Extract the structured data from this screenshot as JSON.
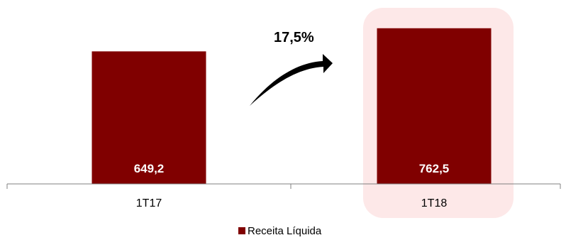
{
  "chart_data": {
    "type": "bar",
    "categories": [
      "1T17",
      "1T18"
    ],
    "series": [
      {
        "name": "Receita Líquida",
        "values": [
          649.2,
          762.5
        ]
      }
    ],
    "data_labels": [
      "649,2",
      "762,5"
    ],
    "ylim": [
      0,
      800
    ],
    "grid": false,
    "legend_position": "bottom",
    "highlight_category": "1T18",
    "annotation": {
      "text": "17,5%",
      "type": "growth-arrow"
    },
    "colors": {
      "bar": "#800000",
      "highlight": "#fde8e8",
      "axis": "#808080",
      "text": "#000000",
      "label": "#ffffff"
    }
  }
}
